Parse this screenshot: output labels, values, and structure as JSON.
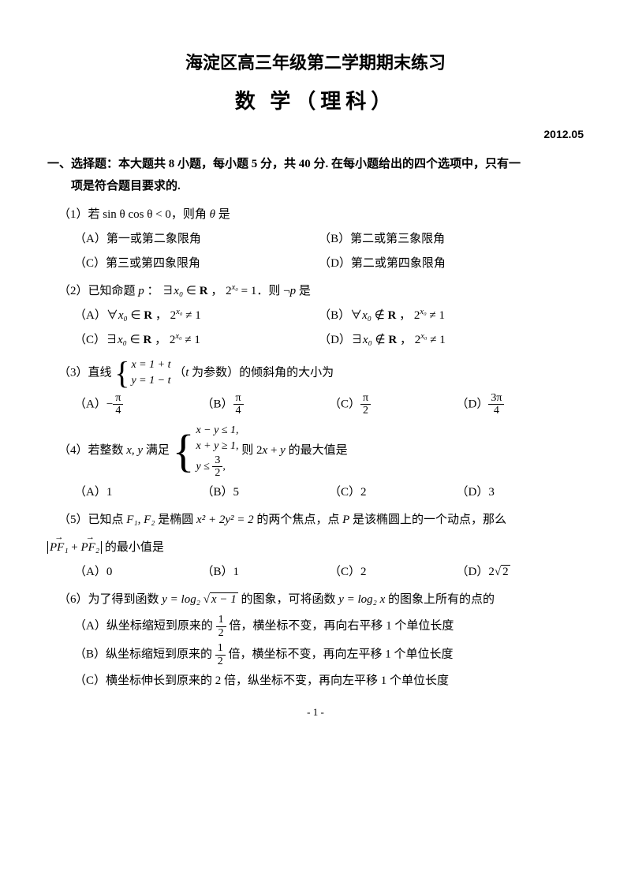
{
  "title_line1": "海淀区高三年级第二学期期末练习",
  "title_line2": "数 学（理科）",
  "date": "2012.05",
  "section1_head_a": "一、选择题：本大题共 8 小题，每小题 5 分，共 40 分. 在每小题给出的四个选项中，只有一",
  "section1_head_b": "项是符合题目要求的.",
  "q1": {
    "stem_a": "（1）若 ",
    "stem_math": "sin θ cos θ < 0",
    "stem_b": "，则角 ",
    "stem_c": "θ",
    "stem_d": " 是",
    "A": "（A）第一或第二象限角",
    "B": "（B）第二或第三象限角",
    "C": "（C）第三或第四象限角",
    "D": "（D）第二或第四象限角"
  },
  "q2": {
    "stem_a": "（2）已知命题 ",
    "stem_p": "p",
    "stem_b": " ： ∃",
    "stem_x0": "x₀",
    "stem_c": " ∈ ",
    "stem_R": "R",
    "stem_d": " ， 2",
    "stem_exp": "x₀",
    "stem_e": " = 1．则 ¬",
    "stem_p2": "p",
    "stem_f": " 是",
    "A_pre": "（A）∀",
    "A_x": "x₀",
    "A_mid": " ∈ ",
    "A_R": "R",
    "A_post": " ， 2",
    "A_exp": "x₀",
    "A_end": " ≠ 1",
    "B_pre": "（B）∀",
    "B_x": "x₀",
    "B_mid": " ∉ ",
    "B_R": "R",
    "B_post": " ， 2",
    "B_exp": "x₀",
    "B_end": " ≠ 1",
    "C_pre": "（C）∃",
    "C_x": "x₀",
    "C_mid": " ∈ ",
    "C_R": "R",
    "C_post": " ， 2",
    "C_exp": "x₀",
    "C_end": " ≠ 1",
    "D_pre": "（D）∃",
    "D_x": "x₀",
    "D_mid": " ∉ ",
    "D_R": "R",
    "D_post": " ， 2",
    "D_exp": "x₀",
    "D_end": " ≠ 1"
  },
  "q3": {
    "stem_a": "（3）直线 ",
    "line1": "x = 1 + t",
    "line2": "y = 1 − t",
    "stem_b": " （",
    "stem_t": "t",
    "stem_c": " 为参数）的倾斜角的大小为",
    "A_lbl": "（A）−",
    "A_num": "π",
    "A_den": "4",
    "B_lbl": "（B）",
    "B_num": "π",
    "B_den": "4",
    "C_lbl": "（C）",
    "C_num": "π",
    "C_den": "2",
    "D_lbl": "（D）",
    "D_num": "3π",
    "D_den": "4"
  },
  "q4": {
    "stem_a": "（4）若整数 ",
    "stem_xy": "x, y",
    "stem_b": " 满足 ",
    "line1": "x − y ≤ 1,",
    "line2": "x + y ≥ 1,",
    "line3a": "y ≤ ",
    "line3_num": "3",
    "line3_den": "2",
    "line3b": ",",
    "stem_c": " 则 2",
    "stem_x": "x",
    "stem_d": " + ",
    "stem_y": "y",
    "stem_e": " 的最大值是",
    "A": "（A）1",
    "B": "（B）5",
    "C": "（C）2",
    "D": "（D）3"
  },
  "q5": {
    "stem_a": "（5）已知点 ",
    "stem_F": "F₁, F₂",
    "stem_b": " 是椭圆 ",
    "stem_eq": "x² + 2y² = 2",
    "stem_c": " 的两个焦点，点 ",
    "stem_P": "P",
    "stem_d": " 是该椭圆上的一个动点，那么",
    "line2_a": "PF₁",
    "line2_plus": " + ",
    "line2_b": "PF₂",
    "line2_c": " 的最小值是",
    "A": "（A）0",
    "B": "（B）1",
    "C": "（C）2",
    "D_lbl": "（D）2",
    "D_rad": "2"
  },
  "q6": {
    "stem_a": "（6）为了得到函数 ",
    "stem_y1": "y = log₂",
    "stem_rad": "x − 1",
    "stem_b": " 的图象，可将函数 ",
    "stem_y2": "y = log₂ x",
    "stem_c": " 的图象上所有的点的",
    "A_a": "（A）纵坐标缩短到原来的 ",
    "A_num": "1",
    "A_den": "2",
    "A_b": " 倍，横坐标不变，再向右平移 1 个单位长度",
    "B_a": "（B）纵坐标缩短到原来的 ",
    "B_num": "1",
    "B_den": "2",
    "B_b": " 倍，横坐标不变，再向左平移 1 个单位长度",
    "C": "（C）横坐标伸长到原来的 2 倍，纵坐标不变，再向左平移 1 个单位长度"
  },
  "pagenum": "- 1 -"
}
